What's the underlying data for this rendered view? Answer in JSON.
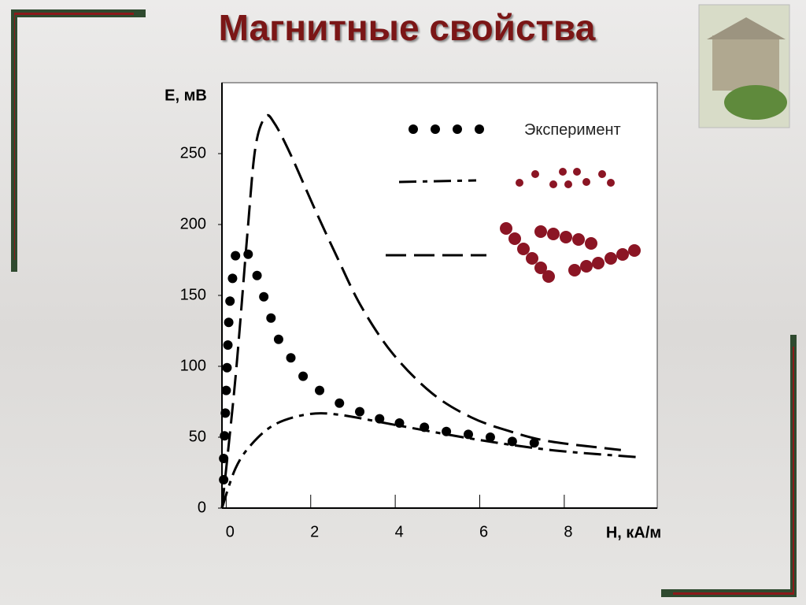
{
  "title": "Магнитные свойства",
  "chart_data": {
    "type": "line",
    "xlabel": "H, кА/м",
    "ylabel": "E, мВ",
    "xlim": [
      -0.1,
      10.2
    ],
    "ylim": [
      0,
      300
    ],
    "xticks": [
      0,
      2,
      4,
      6,
      8
    ],
    "yticks": [
      0,
      50,
      100,
      150,
      200,
      250
    ],
    "series": [
      {
        "name": "Эксперимент",
        "color": "#000000",
        "style": "markers",
        "x": [
          -0.06,
          -0.06,
          -0.04,
          -0.02,
          0.0,
          0.02,
          0.04,
          0.06,
          0.09,
          0.15,
          0.22,
          0.52,
          0.73,
          0.89,
          1.06,
          1.24,
          1.53,
          1.82,
          2.21,
          2.68,
          3.16,
          3.63,
          4.1,
          4.69,
          5.21,
          5.73,
          6.25,
          6.77,
          7.29
        ],
        "values": [
          20,
          35,
          51,
          67,
          83,
          99,
          115,
          131,
          146,
          162,
          178,
          179,
          164,
          149,
          134,
          119,
          106,
          93,
          83,
          74,
          68,
          63,
          60,
          57,
          54,
          52,
          50,
          47,
          46
        ]
      },
      {
        "color": "#000000",
        "style": "dash-dot",
        "x": [
          -0.1,
          0.22,
          0.6,
          1.15,
          1.9,
          2.64,
          3.94,
          5.8,
          7.67,
          9.71
        ],
        "values": [
          0,
          28,
          45,
          59,
          66,
          66,
          59,
          49,
          41,
          36
        ]
      },
      {
        "color": "#000000",
        "style": "dashed",
        "x": [
          -0.1,
          0.22,
          0.5,
          0.69,
          0.93,
          1.15,
          1.53,
          2.08,
          2.64,
          3.2,
          3.94,
          4.87,
          5.8,
          6.73,
          7.67,
          9.34
        ],
        "values": [
          0,
          92,
          193,
          254,
          276,
          271,
          249,
          212,
          176,
          142,
          109,
          81,
          64,
          54,
          47,
          41
        ]
      }
    ]
  }
}
